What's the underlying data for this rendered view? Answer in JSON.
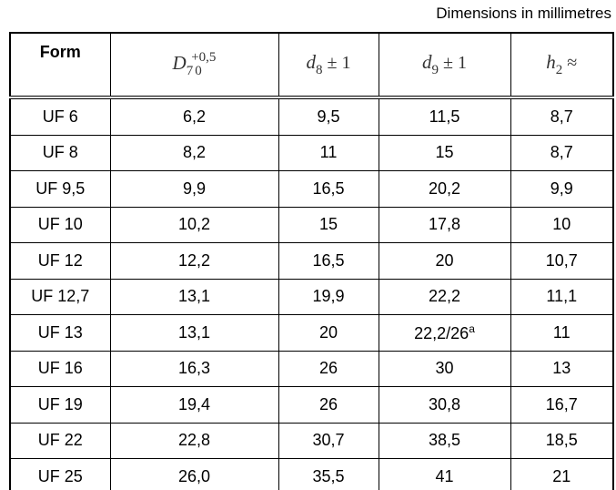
{
  "caption": "Dimensions in millimetres",
  "table": {
    "header": [
      {
        "text": "Form"
      },
      {
        "symbol": "D",
        "subscript": "7",
        "upper": "+0,5",
        "lower": "0"
      },
      {
        "symbol": "d",
        "subscript": "8",
        "suffix": "± 1"
      },
      {
        "symbol": "d",
        "subscript": "9",
        "suffix": "± 1"
      },
      {
        "symbol": "h",
        "subscript": "2",
        "suffix": "≈"
      }
    ],
    "rows": [
      [
        "UF 6",
        "6,2",
        "9,5",
        "11,5",
        "8,7"
      ],
      [
        "UF 8",
        "8,2",
        "11",
        "15",
        "8,7"
      ],
      [
        "UF 9,5",
        "9,9",
        "16,5",
        "20,2",
        "9,9"
      ],
      [
        "UF 10",
        "10,2",
        "15",
        "17,8",
        "10"
      ],
      [
        "UF 12",
        "12,2",
        "16,5",
        "20",
        "10,7"
      ],
      [
        "UF 12,7",
        "13,1",
        "19,9",
        "22,2",
        "11,1"
      ],
      [
        "UF 13",
        "13,1",
        "20",
        {
          "text": "22,2/26",
          "footnote": "a"
        },
        "11"
      ],
      [
        "UF 16",
        "16,3",
        "26",
        "30",
        "13"
      ],
      [
        "UF 19",
        "19,4",
        "26",
        "30,8",
        "16,7"
      ],
      [
        "UF 22",
        "22,8",
        "30,7",
        "38,5",
        "18,5"
      ],
      [
        "UF 25",
        "26,0",
        "35,5",
        "41",
        "21"
      ]
    ]
  }
}
